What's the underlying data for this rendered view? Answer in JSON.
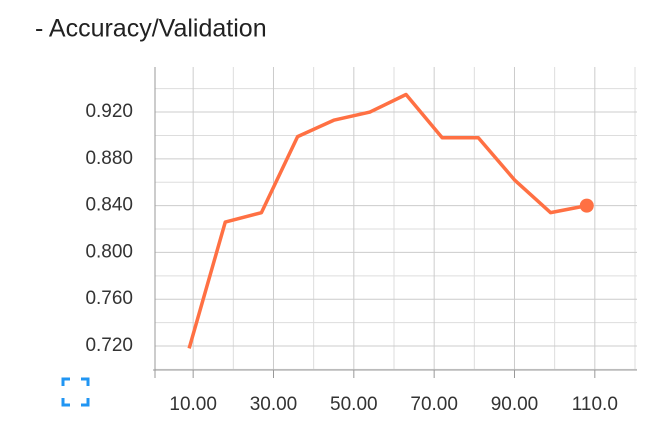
{
  "chart_data": {
    "type": "line",
    "title": "- Accuracy/Validation",
    "x": [
      9,
      18,
      27,
      36,
      45,
      54,
      63,
      72,
      81,
      90,
      99,
      108
    ],
    "series": [
      {
        "color": "#ff7043",
        "values": [
          0.718,
          0.826,
          0.834,
          0.899,
          0.913,
          0.92,
          0.935,
          0.898,
          0.898,
          0.862,
          0.834,
          0.84
        ]
      }
    ],
    "xlim": [
      0.5,
      120.5
    ],
    "ylim": [
      0.6995,
      0.9585
    ],
    "xticks": [
      {
        "value": 10,
        "label": "10.00"
      },
      {
        "value": 30,
        "label": "30.00"
      },
      {
        "value": 50,
        "label": "50.00"
      },
      {
        "value": 70,
        "label": "70.00"
      },
      {
        "value": 90,
        "label": "90.00"
      },
      {
        "value": 110,
        "label": "110.0"
      }
    ],
    "yticks": [
      {
        "value": 0.72,
        "label": "0.720"
      },
      {
        "value": 0.76,
        "label": "0.760"
      },
      {
        "value": 0.8,
        "label": "0.800"
      },
      {
        "value": 0.84,
        "label": "0.840"
      },
      {
        "value": 0.88,
        "label": "0.880"
      },
      {
        "value": 0.92,
        "label": "0.920"
      }
    ],
    "x_minor_ticks": [
      20,
      40,
      60,
      80,
      100,
      120
    ],
    "y_minor_ticks": [
      0.7,
      0.74,
      0.78,
      0.82,
      0.86,
      0.9,
      0.94
    ],
    "grid": true,
    "last_point_marker": true
  }
}
